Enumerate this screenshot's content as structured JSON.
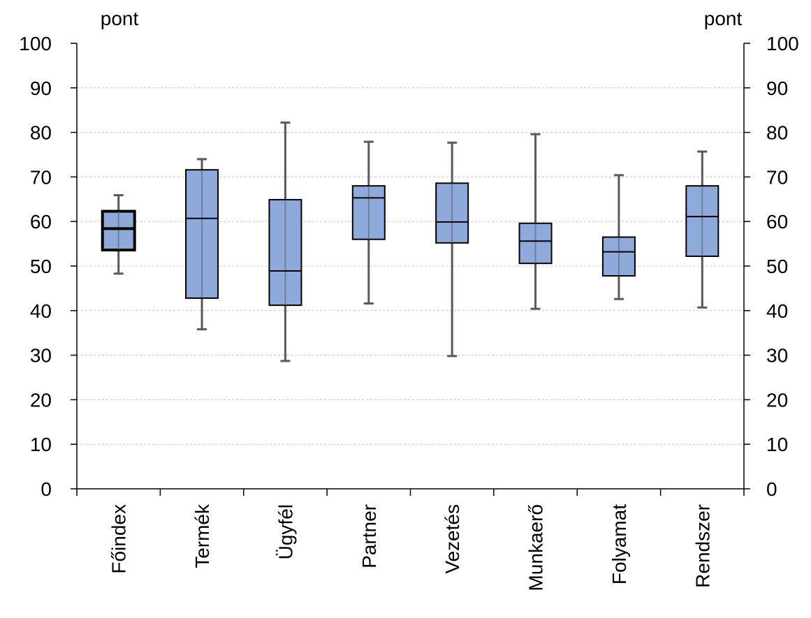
{
  "chart_data": {
    "type": "boxplot",
    "left_unit": "pont",
    "right_unit": "pont",
    "ylim": [
      0,
      100
    ],
    "yticks": [
      0,
      10,
      20,
      30,
      40,
      50,
      60,
      70,
      80,
      90,
      100
    ],
    "grid": true,
    "categories": [
      "Főindex",
      "Termék",
      "Ügyfél",
      "Partner",
      "Vezetés",
      "Munkaerő",
      "Folyamat",
      "Rendszer"
    ],
    "boxes": [
      {
        "min": 48.3,
        "q1": 53.6,
        "median": 58.4,
        "q3": 62.3,
        "max": 65.9,
        "emphasized": true
      },
      {
        "min": 35.8,
        "q1": 42.8,
        "median": 60.7,
        "q3": 71.6,
        "max": 74.0,
        "emphasized": false
      },
      {
        "min": 28.7,
        "q1": 41.2,
        "median": 48.9,
        "q3": 64.9,
        "max": 82.2,
        "emphasized": false
      },
      {
        "min": 41.6,
        "q1": 56.0,
        "median": 65.3,
        "q3": 68.0,
        "max": 77.9,
        "emphasized": false
      },
      {
        "min": 29.8,
        "q1": 55.2,
        "median": 59.9,
        "q3": 68.6,
        "max": 77.7,
        "emphasized": false
      },
      {
        "min": 40.4,
        "q1": 50.6,
        "median": 55.6,
        "q3": 59.6,
        "max": 79.6,
        "emphasized": false
      },
      {
        "min": 42.6,
        "q1": 47.8,
        "median": 53.2,
        "q3": 56.5,
        "max": 70.4,
        "emphasized": false
      },
      {
        "min": 40.7,
        "q1": 52.2,
        "median": 61.1,
        "q3": 68.0,
        "max": 75.7,
        "emphasized": false
      }
    ],
    "colors": {
      "box_fill": "#8eaadb",
      "box_stroke": "#000000",
      "whisker": "#595959",
      "grid": "#c8c8c8",
      "axis": "#000000"
    }
  }
}
